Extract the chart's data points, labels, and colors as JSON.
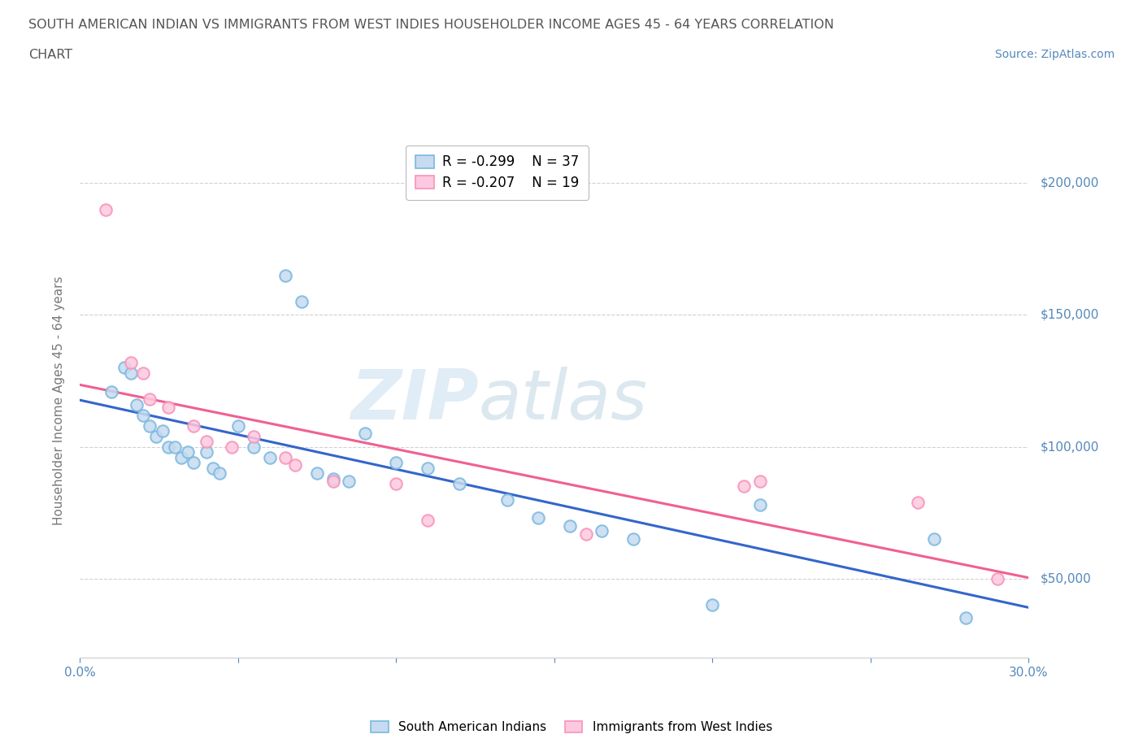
{
  "title_line1": "SOUTH AMERICAN INDIAN VS IMMIGRANTS FROM WEST INDIES HOUSEHOLDER INCOME AGES 45 - 64 YEARS CORRELATION",
  "title_line2": "CHART",
  "source_text": "Source: ZipAtlas.com",
  "ylabel": "Householder Income Ages 45 - 64 years",
  "xlim": [
    0.0,
    0.3
  ],
  "ylim": [
    20000,
    215000
  ],
  "xticks": [
    0.0,
    0.05,
    0.1,
    0.15,
    0.2,
    0.25,
    0.3
  ],
  "xticklabels": [
    "0.0%",
    "",
    "",
    "",
    "",
    "",
    "30.0%"
  ],
  "ytick_positions": [
    50000,
    100000,
    150000,
    200000
  ],
  "ytick_labels": [
    "$50,000",
    "$100,000",
    "$150,000",
    "$200,000"
  ],
  "blue_scatter_x": [
    0.01,
    0.014,
    0.016,
    0.018,
    0.02,
    0.022,
    0.024,
    0.026,
    0.028,
    0.03,
    0.032,
    0.034,
    0.036,
    0.04,
    0.042,
    0.044,
    0.05,
    0.055,
    0.06,
    0.065,
    0.07,
    0.075,
    0.08,
    0.085,
    0.09,
    0.1,
    0.11,
    0.12,
    0.135,
    0.145,
    0.155,
    0.165,
    0.175,
    0.2,
    0.215,
    0.27,
    0.28
  ],
  "blue_scatter_y": [
    121000,
    130000,
    128000,
    116000,
    112000,
    108000,
    104000,
    106000,
    100000,
    100000,
    96000,
    98000,
    94000,
    98000,
    92000,
    90000,
    108000,
    100000,
    96000,
    165000,
    155000,
    90000,
    88000,
    87000,
    105000,
    94000,
    92000,
    86000,
    80000,
    73000,
    70000,
    68000,
    65000,
    40000,
    78000,
    65000,
    35000
  ],
  "pink_scatter_x": [
    0.008,
    0.016,
    0.02,
    0.022,
    0.028,
    0.036,
    0.04,
    0.048,
    0.055,
    0.065,
    0.068,
    0.08,
    0.1,
    0.11,
    0.16,
    0.21,
    0.215,
    0.265,
    0.29
  ],
  "pink_scatter_y": [
    190000,
    132000,
    128000,
    118000,
    115000,
    108000,
    102000,
    100000,
    104000,
    96000,
    93000,
    87000,
    86000,
    72000,
    67000,
    85000,
    87000,
    79000,
    50000
  ],
  "blue_r": -0.299,
  "blue_n": 37,
  "pink_r": -0.207,
  "pink_n": 19,
  "blue_color": "#7ab8e0",
  "blue_fill": "#c6dbef",
  "pink_color": "#f892b8",
  "pink_fill": "#fcc9e0",
  "blue_line_color": "#3366cc",
  "pink_line_color": "#f06090",
  "watermark_zip": "ZIP",
  "watermark_atlas": "atlas",
  "bg_color": "#ffffff",
  "grid_color": "#cccccc",
  "title_color": "#555555",
  "axis_label_color": "#777777",
  "tick_color": "#5588bb"
}
